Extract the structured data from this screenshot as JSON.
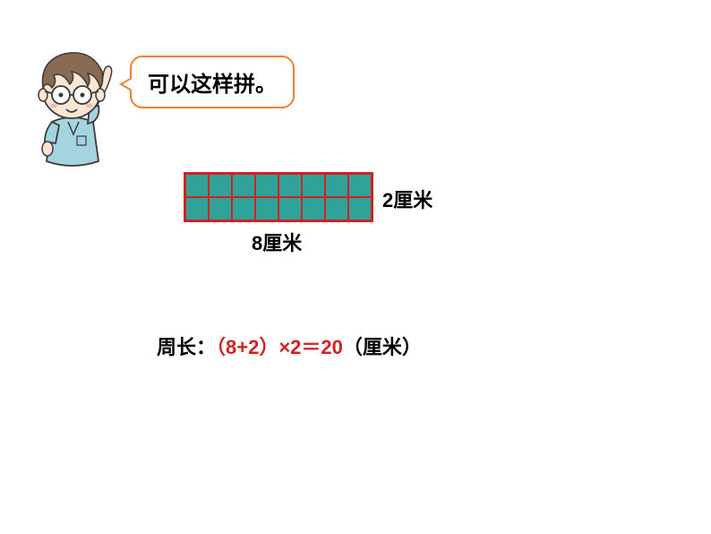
{
  "speech": {
    "text": "可以这样拼。",
    "border_color": "#f08030",
    "font_size": 24
  },
  "grid": {
    "cols": 8,
    "rows": 2,
    "cell_size": 24,
    "cell_color": "#2fa39a",
    "border_color": "#d62020",
    "gap": 2
  },
  "labels": {
    "right": "2厘米",
    "bottom": "8厘米",
    "font_size": 22
  },
  "perimeter": {
    "prefix": "周长：",
    "expression": "（8+2）×2＝20",
    "suffix": "（厘米）",
    "expr_color": "#d62020",
    "font_size": 22
  },
  "character": {
    "hair_color": "#8a6a52",
    "skin_color": "#fce6d4",
    "shirt_color": "#a3d4e0",
    "outline_color": "#3a3a3a"
  }
}
